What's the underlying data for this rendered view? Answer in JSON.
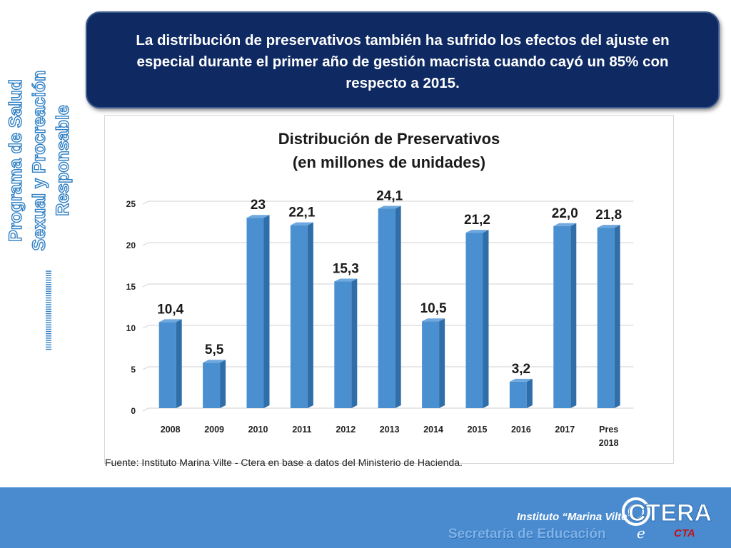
{
  "headline": "La distribución de preservativos también ha sufrido los efectos del ajuste en especial durante el primer año de gestión macrista cuando cayó un 85% con respecto a 2015.",
  "side": {
    "line1": "Programa de Salud",
    "line2": "Sexual y Procreación",
    "line3": "Responsable",
    "deco": "ꟾꟾꟾꟾꟾꟾꟾꟾꟾꟾꟾꟾꟾꟾꟾꟾꟾꟾꟾꟾꟾꟾꟾꟾꟾꟾꟾꟾꟾꟾꟾꟾꟾꟾꟾꟾ"
  },
  "chart_data": {
    "type": "bar",
    "title_line1": "Distribución de Preservativos",
    "title_line2": "(en millones de unidades)",
    "categories": [
      "2008",
      "2009",
      "2010",
      "2011",
      "2012",
      "2013",
      "2014",
      "2015",
      "2016",
      "2017",
      "Pres 2018"
    ],
    "values": [
      10.4,
      5.5,
      23,
      22.1,
      15.3,
      24.1,
      10.5,
      21.2,
      3.2,
      22.0,
      21.8
    ],
    "data_labels": [
      "10,4",
      "5,5",
      "23",
      "22,1",
      "15,3",
      "24,1",
      "10,5",
      "21,2",
      "3,2",
      "22,0",
      "21,8"
    ],
    "yticks": [
      "0",
      "5",
      "10",
      "15",
      "20",
      "25"
    ],
    "ylim": [
      0,
      25
    ],
    "grid": true,
    "bar_color": "#4a90d0",
    "bar_side_color": "#2f6ea8",
    "bar_top_color": "#6ea8de"
  },
  "source": "Fuente: Instituto Marina Vilte - Ctera en base a datos del Ministerio de Hacienda.",
  "footer": {
    "institute": "Instituto “Marina Vilte”",
    "secretaria": "Secretaría de Educación",
    "logo_text": "CTERA",
    "logo_sub": "CTA",
    "color": "#4a8bd0"
  }
}
